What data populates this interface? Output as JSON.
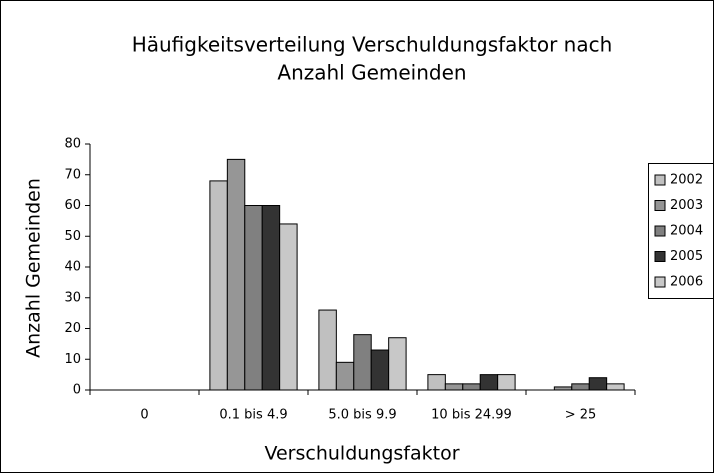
{
  "chart_data": {
    "type": "bar",
    "title": [
      "Häufigkeitsverteilung Verschuldungsfaktor nach",
      "Anzahl Gemeinden"
    ],
    "x_label": "Verschuldungsfaktor",
    "y_label": "Anzahl Gemeinden",
    "categories": [
      "0",
      "0.1 bis 4.9",
      "5.0 bis 9.9",
      "10 bis 24.99",
      "> 25"
    ],
    "series": [
      {
        "name": "2002",
        "color": "#c0c0c0",
        "values": [
          0,
          68,
          26,
          5,
          0
        ]
      },
      {
        "name": "2003",
        "color": "#969696",
        "values": [
          0,
          75,
          9,
          2,
          1
        ]
      },
      {
        "name": "2004",
        "color": "#808080",
        "values": [
          0,
          60,
          18,
          2,
          2
        ]
      },
      {
        "name": "2005",
        "color": "#333333",
        "values": [
          0,
          60,
          13,
          5,
          4
        ]
      },
      {
        "name": "2006",
        "color": "#c8c8c8",
        "values": [
          0,
          54,
          17,
          5,
          2
        ]
      }
    ],
    "ylim": [
      0,
      80
    ],
    "yticks": [
      0,
      10,
      20,
      30,
      40,
      50,
      60,
      70,
      80
    ],
    "grid": false,
    "legend": "right"
  }
}
